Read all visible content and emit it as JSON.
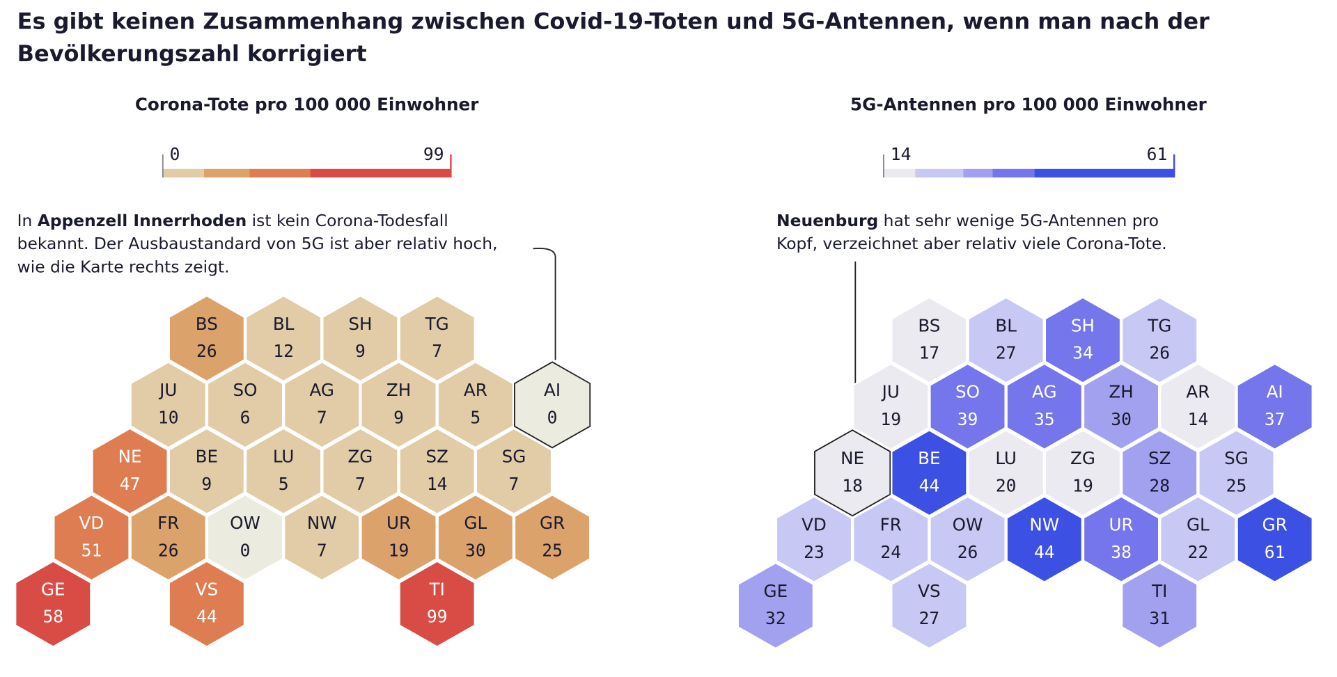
{
  "title": "Es gibt keinen Zusammenhang zwischen Covid-19-Toten und 5G-Antennen, wenn man nach der Bevölkerungszahl korrigiert",
  "title_lines": [
    "Es gibt keinen Zusammenhang zwischen Covid-19-Toten und 5G-Antennen, wenn man nach der",
    "Bevölkerungszahl korrigiert"
  ],
  "maps": [
    {
      "title": "Corona-Tote pro 100 000 Einwohner",
      "legend": {
        "min": 0,
        "max": 99,
        "colors": [
          "#e2cca7",
          "#dba26b",
          "#df7d52",
          "#d94c45"
        ]
      },
      "annotation": [
        [
          {
            "text": "In "
          },
          {
            "text": "Appenzell Innerrhoden",
            "bold": true
          },
          {
            "text": " ist kein Corona-Todesfall"
          }
        ],
        [
          {
            "text": "bekannt. Der Ausbaustandard von 5G ist aber relativ hoch,"
          }
        ],
        [
          {
            "text": "wie die Karte rechts zeigt."
          }
        ]
      ],
      "cells": [
        {
          "code": "BS",
          "value": 26,
          "color": "#dba26b"
        },
        {
          "code": "BL",
          "value": 12,
          "color": "#e2cca7"
        },
        {
          "code": "SH",
          "value": 9,
          "color": "#e2cca7"
        },
        {
          "code": "TG",
          "value": 7,
          "color": "#e2cca7"
        },
        {
          "code": "JU",
          "value": 10,
          "color": "#e2cca7"
        },
        {
          "code": "SO",
          "value": 6,
          "color": "#e2cca7"
        },
        {
          "code": "AG",
          "value": 7,
          "color": "#e2cca7"
        },
        {
          "code": "ZH",
          "value": 9,
          "color": "#e2cca7"
        },
        {
          "code": "AR",
          "value": 5,
          "color": "#e2cca7"
        },
        {
          "code": "AI",
          "value": 0,
          "color": "#ecebe0",
          "highlight": true
        },
        {
          "code": "NE",
          "value": 47,
          "color": "#df7d52"
        },
        {
          "code": "BE",
          "value": 9,
          "color": "#e2cca7"
        },
        {
          "code": "LU",
          "value": 5,
          "color": "#e2cca7"
        },
        {
          "code": "ZG",
          "value": 7,
          "color": "#e2cca7"
        },
        {
          "code": "SZ",
          "value": 14,
          "color": "#e2cca7"
        },
        {
          "code": "SG",
          "value": 7,
          "color": "#e2cca7"
        },
        {
          "code": "VD",
          "value": 51,
          "color": "#df7d52"
        },
        {
          "code": "FR",
          "value": 26,
          "color": "#dba26b"
        },
        {
          "code": "OW",
          "value": 0,
          "color": "#ecebe0"
        },
        {
          "code": "NW",
          "value": 7,
          "color": "#e2cca7"
        },
        {
          "code": "UR",
          "value": 19,
          "color": "#dba26b"
        },
        {
          "code": "GL",
          "value": 30,
          "color": "#dba26b"
        },
        {
          "code": "GR",
          "value": 25,
          "color": "#dba26b"
        },
        {
          "code": "GE",
          "value": 58,
          "color": "#d94c45"
        },
        {
          "code": "VS",
          "value": 44,
          "color": "#df7d52"
        },
        {
          "code": "TI",
          "value": 99,
          "color": "#d94c45"
        }
      ]
    },
    {
      "title": "5G-Antennen pro 100 000 Einwohner",
      "legend": {
        "min": 14,
        "max": 61,
        "colors": [
          "#ebeaf0",
          "#c8c8f4",
          "#a1a1f0",
          "#7575ec",
          "#3d50e4"
        ]
      },
      "annotation": [
        [
          {
            "text": "Neuenburg",
            "bold": true
          },
          {
            "text": " hat sehr wenige 5G-Antennen pro"
          }
        ],
        [
          {
            "text": "Kopf, verzeichnet aber relativ viele Corona-Tote."
          }
        ]
      ],
      "cells": [
        {
          "code": "BS",
          "value": 17,
          "color": "#ebeaf0"
        },
        {
          "code": "BL",
          "value": 27,
          "color": "#c8c8f4"
        },
        {
          "code": "SH",
          "value": 34,
          "color": "#7575ec"
        },
        {
          "code": "TG",
          "value": 26,
          "color": "#c8c8f4"
        },
        {
          "code": "JU",
          "value": 19,
          "color": "#ebeaf0"
        },
        {
          "code": "SO",
          "value": 39,
          "color": "#7575ec"
        },
        {
          "code": "AG",
          "value": 35,
          "color": "#7575ec"
        },
        {
          "code": "ZH",
          "value": 30,
          "color": "#a1a1f0"
        },
        {
          "code": "AR",
          "value": 14,
          "color": "#ebeaf0"
        },
        {
          "code": "AI",
          "value": 37,
          "color": "#7575ec"
        },
        {
          "code": "NE",
          "value": 18,
          "color": "#ebeaf0",
          "highlight": true
        },
        {
          "code": "BE",
          "value": 44,
          "color": "#3d50e4"
        },
        {
          "code": "LU",
          "value": 20,
          "color": "#ebeaf0"
        },
        {
          "code": "ZG",
          "value": 19,
          "color": "#ebeaf0"
        },
        {
          "code": "SZ",
          "value": 28,
          "color": "#a1a1f0"
        },
        {
          "code": "SG",
          "value": 25,
          "color": "#c8c8f4"
        },
        {
          "code": "VD",
          "value": 23,
          "color": "#c8c8f4"
        },
        {
          "code": "FR",
          "value": 24,
          "color": "#c8c8f4"
        },
        {
          "code": "OW",
          "value": 26,
          "color": "#c8c8f4"
        },
        {
          "code": "NW",
          "value": 44,
          "color": "#3d50e4"
        },
        {
          "code": "UR",
          "value": 38,
          "color": "#7575ec"
        },
        {
          "code": "GL",
          "value": 22,
          "color": "#c8c8f4"
        },
        {
          "code": "GR",
          "value": 61,
          "color": "#3d50e4"
        },
        {
          "code": "GE",
          "value": 32,
          "color": "#a1a1f0"
        },
        {
          "code": "VS",
          "value": 27,
          "color": "#c8c8f4"
        },
        {
          "code": "TI",
          "value": 31,
          "color": "#a1a1f0"
        }
      ]
    }
  ]
}
